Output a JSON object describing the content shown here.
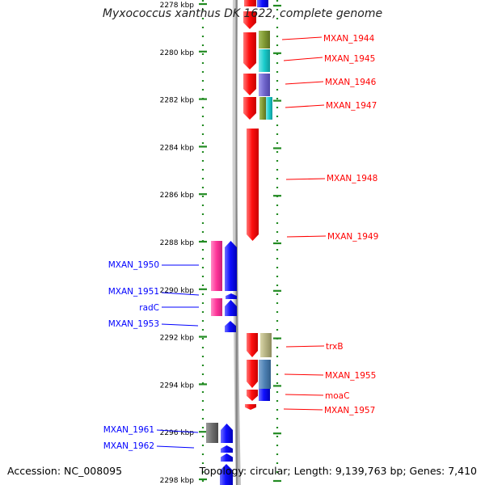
{
  "title": "Myxococcus xanthus DK 1622, complete genome",
  "accession": "Accession: NC_008095",
  "summary": "Topology: circular; Length: 9,139,763 bp; Genes: 7,410",
  "ruler": {
    "labels": [
      "2278 kbp",
      "2280 kbp",
      "2282 kbp",
      "2284 kbp",
      "2286 kbp",
      "2288 kbp",
      "2290 kbp",
      "2292 kbp",
      "2294 kbp",
      "2296 kbp",
      "2298 kbp"
    ]
  },
  "colors": {
    "forward": "#ff0000",
    "reverse": "#0000ff",
    "pink": "#ff3399",
    "olive": "#809933",
    "cyan": "#19cccc",
    "slate": "#7066cc",
    "khaki": "#b3b080",
    "steel": "#4d80b3",
    "gray": "#6e6e6e",
    "ruler": "#228b22",
    "backbone": "#888888"
  },
  "genes": [
    {
      "label": "MXAN_1944",
      "strand": "forward",
      "start_kbp": 2279.1,
      "end_kbp": 2280.0
    },
    {
      "label": "MXAN_1945",
      "strand": "forward",
      "start_kbp": 2280.0,
      "end_kbp": 2281.0
    },
    {
      "label": "MXAN_1946",
      "strand": "forward",
      "start_kbp": 2281.0,
      "end_kbp": 2282.0
    },
    {
      "label": "MXAN_1947",
      "strand": "forward",
      "start_kbp": 2282.0,
      "end_kbp": 2282.9
    },
    {
      "label": "MXAN_1948",
      "strand": "forward",
      "start_kbp": 2283.1,
      "end_kbp": 2288.0
    },
    {
      "label": "MXAN_1949",
      "strand": "forward",
      "start_kbp": 2283.1,
      "end_kbp": 2288.0
    },
    {
      "label": "MXAN_1950",
      "strand": "reverse",
      "start_kbp": 2288.0,
      "end_kbp": 2290.1
    },
    {
      "label": "MXAN_1951",
      "strand": "reverse",
      "start_kbp": 2290.1,
      "end_kbp": 2290.4
    },
    {
      "label": "radC",
      "strand": "reverse",
      "start_kbp": 2290.4,
      "end_kbp": 2291.1
    },
    {
      "label": "MXAN_1953",
      "strand": "reverse",
      "start_kbp": 2291.3,
      "end_kbp": 2291.8
    },
    {
      "label": "trxB",
      "strand": "forward",
      "start_kbp": 2292.0,
      "end_kbp": 2292.9
    },
    {
      "label": "MXAN_1955",
      "strand": "forward",
      "start_kbp": 2293.0,
      "end_kbp": 2294.2
    },
    {
      "label": "moaC",
      "strand": "forward",
      "start_kbp": 2294.2,
      "end_kbp": 2294.7
    },
    {
      "label": "MXAN_1957",
      "strand": "forward",
      "start_kbp": 2294.9,
      "end_kbp": 2295.1
    },
    {
      "label": "MXAN_1961",
      "strand": "reverse",
      "start_kbp": 2295.7,
      "end_kbp": 2296.5
    },
    {
      "label": "MXAN_1962",
      "strand": "reverse",
      "start_kbp": 2296.6,
      "end_kbp": 2297.2
    }
  ]
}
